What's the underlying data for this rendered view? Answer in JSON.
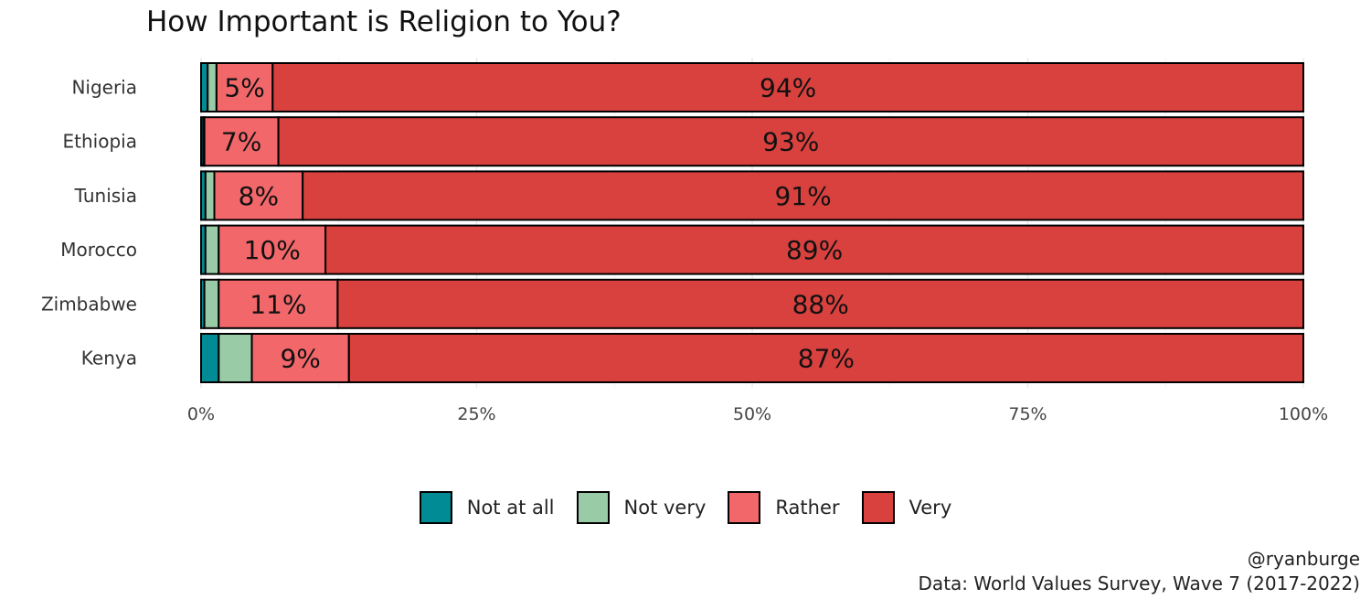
{
  "chart_data": {
    "type": "bar",
    "orientation": "horizontal",
    "stacked": true,
    "title": "How Important is Religion to You?",
    "categories": [
      "Nigeria",
      "Ethiopia",
      "Tunisia",
      "Morocco",
      "Zimbabwe",
      "Kenya"
    ],
    "series": [
      {
        "name": "Not at all",
        "color": "#008b95",
        "values": [
          0.6,
          0.2,
          0.4,
          0.4,
          0.3,
          1.6
        ],
        "labels": [
          "",
          "",
          "",
          "",
          "",
          ""
        ]
      },
      {
        "name": "Not very",
        "color": "#99cca6",
        "values": [
          0.8,
          0.1,
          0.8,
          1.2,
          1.3,
          3.0
        ],
        "labels": [
          "",
          "",
          "",
          "",
          "",
          ""
        ]
      },
      {
        "name": "Rather",
        "color": "#f2676a",
        "values": [
          5.1,
          6.7,
          8.0,
          9.7,
          10.8,
          8.8
        ],
        "labels": [
          "5%",
          "7%",
          "8%",
          "10%",
          "11%",
          "9%"
        ]
      },
      {
        "name": "Very",
        "color": "#d8413e",
        "values": [
          93.6,
          92.8,
          90.6,
          88.8,
          87.7,
          86.5
        ],
        "labels": [
          "94%",
          "93%",
          "91%",
          "89%",
          "88%",
          "87%"
        ]
      }
    ],
    "xlim": [
      0,
      100
    ],
    "xticks": [
      0,
      25,
      50,
      75,
      100
    ],
    "xtick_labels": [
      "0%",
      "25%",
      "50%",
      "75%",
      "100%"
    ],
    "grid": true,
    "legend_position": "bottom"
  },
  "caption": {
    "handle": "@ryanburge",
    "source": "Data: World Values Survey, Wave 7 (2017-2022)"
  }
}
